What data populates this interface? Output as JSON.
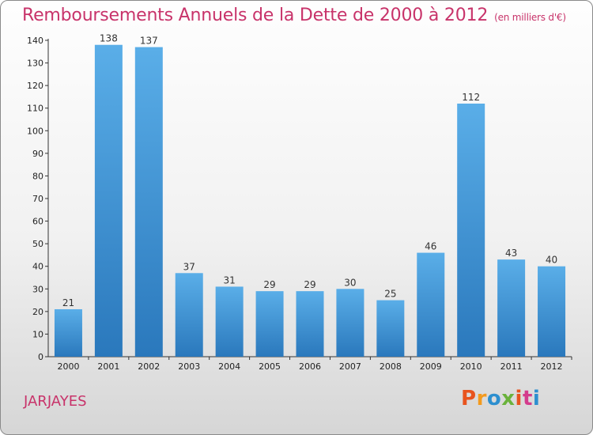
{
  "header": {
    "title": "Remboursements Annuels de la Dette de 2000 à 2012",
    "unit": "(en milliers d'€)"
  },
  "footer": {
    "commune": "JARJAYES",
    "logo_text": "Proxiti"
  },
  "colors": {
    "title": "#c8336a",
    "bar_top": "#5aaee8",
    "bar_bottom": "#2a78bc",
    "logo": [
      "#e8541e",
      "#f39a1e",
      "#2d8fcf",
      "#6ab23b",
      "#e8541e",
      "#d43c8c",
      "#2d8fcf"
    ]
  },
  "chart_data": {
    "type": "bar",
    "categories": [
      "2000",
      "2001",
      "2002",
      "2003",
      "2004",
      "2005",
      "2006",
      "2007",
      "2008",
      "2009",
      "2010",
      "2011",
      "2012"
    ],
    "values": [
      21,
      138,
      137,
      37,
      31,
      29,
      29,
      30,
      25,
      46,
      112,
      43,
      40
    ],
    "ylim": [
      0,
      140
    ],
    "yticks": [
      0,
      10,
      20,
      30,
      40,
      50,
      60,
      70,
      80,
      90,
      100,
      110,
      120,
      130,
      140
    ],
    "grid": false,
    "legend": "none"
  }
}
